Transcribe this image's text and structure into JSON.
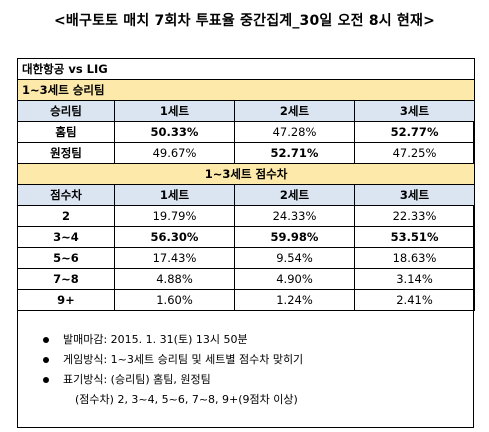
{
  "title": "<배구토토 매치 7회차 투표율 중간집계_30일 오전 8시 현재>",
  "match": "대한항공 vs LIG",
  "section1": {
    "title": "1~3세트 승리팀",
    "headers": [
      "승리팀",
      "1세트",
      "2세트",
      "3세트"
    ],
    "rows": [
      {
        "label": "홈팀",
        "values": [
          "50.33%",
          "47.28%",
          "52.77%"
        ],
        "bold": [
          true,
          false,
          true
        ]
      },
      {
        "label": "원정팀",
        "values": [
          "49.67%",
          "52.71%",
          "47.25%"
        ],
        "bold": [
          false,
          true,
          false
        ]
      }
    ]
  },
  "section2": {
    "title": "1~3세트 점수차",
    "headers": [
      "점수차",
      "1세트",
      "2세트",
      "3세트"
    ],
    "rows": [
      {
        "label": "2",
        "values": [
          "19.79%",
          "24.33%",
          "22.33%"
        ],
        "bold": [
          false,
          false,
          false
        ]
      },
      {
        "label": "3~4",
        "values": [
          "56.30%",
          "59.98%",
          "53.51%"
        ],
        "bold": [
          true,
          true,
          true
        ]
      },
      {
        "label": "5~6",
        "values": [
          "17.43%",
          "9.54%",
          "18.63%"
        ],
        "bold": [
          false,
          false,
          false
        ]
      },
      {
        "label": "7~8",
        "values": [
          "4.88%",
          "4.90%",
          "3.14%"
        ],
        "bold": [
          false,
          false,
          false
        ]
      },
      {
        "label": "9+",
        "values": [
          "1.60%",
          "1.24%",
          "2.41%"
        ],
        "bold": [
          false,
          false,
          false
        ]
      }
    ]
  },
  "notes": [
    "발매마감: 2015. 1. 31(토) 13시 50분",
    "게임방식: 1~3세트 승리팀 및 세트별 점수차 맞히기",
    "표기방식: (승리팀) 홈팀, 원정팀"
  ],
  "note_continuation": "(점수차) 2, 3~4, 5~6, 7~8, 9+(9점차 이상)",
  "colors": {
    "section_bg": "#fde9a9",
    "header_bg": "#dbe5f1",
    "border": "#000000"
  }
}
